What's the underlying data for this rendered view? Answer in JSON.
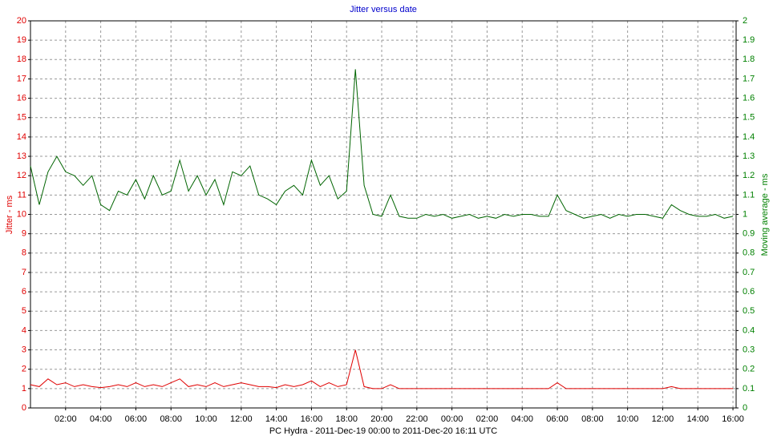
{
  "chart_data": {
    "type": "line",
    "title": "Jitter versus date",
    "xlabel": "PC Hydra  -  2011-Dec-19 00:00  to  2011-Dec-20 16:11 UTC",
    "ylabel": "Jitter - ms",
    "y2label": "Moving average - ms",
    "grid": true,
    "xlim": [
      0,
      40.18
    ],
    "xticks": [
      {
        "value": 2,
        "label": "02:00"
      },
      {
        "value": 4,
        "label": "04:00"
      },
      {
        "value": 6,
        "label": "06:00"
      },
      {
        "value": 8,
        "label": "08:00"
      },
      {
        "value": 10,
        "label": "10:00"
      },
      {
        "value": 12,
        "label": "12:00"
      },
      {
        "value": 14,
        "label": "14:00"
      },
      {
        "value": 16,
        "label": "16:00"
      },
      {
        "value": 18,
        "label": "18:00"
      },
      {
        "value": 20,
        "label": "20:00"
      },
      {
        "value": 22,
        "label": "22:00"
      },
      {
        "value": 24,
        "label": "00:00"
      },
      {
        "value": 26,
        "label": "02:00"
      },
      {
        "value": 28,
        "label": "04:00"
      },
      {
        "value": 30,
        "label": "06:00"
      },
      {
        "value": 32,
        "label": "08:00"
      },
      {
        "value": 34,
        "label": "10:00"
      },
      {
        "value": 36,
        "label": "12:00"
      },
      {
        "value": 38,
        "label": "14:00"
      },
      {
        "value": 40,
        "label": "16:00"
      }
    ],
    "ylim": [
      0,
      20
    ],
    "yticks": [
      0,
      1,
      2,
      3,
      4,
      5,
      6,
      7,
      8,
      9,
      10,
      11,
      12,
      13,
      14,
      15,
      16,
      17,
      18,
      19,
      20
    ],
    "y2lim": [
      0,
      2
    ],
    "y2ticks": [
      0,
      0.1,
      0.2,
      0.3,
      0.4,
      0.5,
      0.6,
      0.7,
      0.8,
      0.9,
      1,
      1.1,
      1.2,
      1.3,
      1.4,
      1.5,
      1.6,
      1.7,
      1.8,
      1.9,
      2
    ],
    "ycolor": "#e00000",
    "y2color": "#008000",
    "xcolor": "#000000",
    "titlecolor": "#0000cc",
    "x": [
      0,
      0.5,
      1,
      1.5,
      2,
      2.5,
      3,
      3.5,
      4,
      4.5,
      5,
      5.5,
      6,
      6.5,
      7,
      7.5,
      8,
      8.5,
      9,
      9.5,
      10,
      10.5,
      11,
      11.5,
      12,
      12.5,
      13,
      13.5,
      14,
      14.5,
      15,
      15.5,
      16,
      16.5,
      17,
      17.5,
      18,
      18.5,
      19,
      19.5,
      20,
      20.5,
      21,
      21.5,
      22,
      22.5,
      23,
      23.5,
      24,
      24.5,
      25,
      25.5,
      26,
      26.5,
      27,
      27.5,
      28,
      28.5,
      29,
      29.5,
      30,
      30.5,
      31,
      31.5,
      32,
      32.5,
      33,
      33.5,
      34,
      34.5,
      35,
      35.5,
      36,
      36.5,
      37,
      37.5,
      38,
      38.5,
      39,
      39.5,
      40
    ],
    "series": [
      {
        "color": "#e00000",
        "values": [
          1.2,
          1.1,
          1.5,
          1.2,
          1.3,
          1.1,
          1.2,
          1.1,
          1.05,
          1.1,
          1.2,
          1.1,
          1.3,
          1.1,
          1.2,
          1.1,
          1.3,
          1.5,
          1.1,
          1.2,
          1.1,
          1.3,
          1.1,
          1.2,
          1.3,
          1.2,
          1.1,
          1.1,
          1.05,
          1.2,
          1.1,
          1.2,
          1.4,
          1.1,
          1.3,
          1.1,
          1.2,
          3.0,
          1.1,
          1.0,
          1.0,
          1.2,
          1.0,
          1.0,
          1.0,
          1.0,
          1.0,
          1.0,
          1.0,
          1.0,
          1.0,
          1.0,
          1.0,
          1.0,
          1.0,
          1.0,
          1.0,
          1.0,
          1.0,
          1.0,
          1.3,
          1.0,
          1.0,
          1.0,
          1.0,
          1.0,
          1.0,
          1.0,
          1.0,
          1.0,
          1.0,
          1.0,
          1.0,
          1.1,
          1.0,
          1.0,
          1.0,
          1.0,
          1.0,
          1.0,
          1.0
        ]
      },
      {
        "color": "#006400",
        "axis": "y2",
        "values": [
          1.25,
          1.05,
          1.22,
          1.3,
          1.22,
          1.2,
          1.15,
          1.2,
          1.05,
          1.02,
          1.12,
          1.1,
          1.18,
          1.08,
          1.2,
          1.1,
          1.12,
          1.28,
          1.12,
          1.2,
          1.1,
          1.18,
          1.05,
          1.22,
          1.2,
          1.25,
          1.1,
          1.08,
          1.05,
          1.12,
          1.15,
          1.1,
          1.28,
          1.15,
          1.2,
          1.08,
          1.12,
          1.75,
          1.15,
          1.0,
          0.99,
          1.1,
          0.99,
          0.98,
          0.98,
          1.0,
          0.99,
          1.0,
          0.98,
          0.99,
          1.0,
          0.98,
          0.99,
          0.98,
          1.0,
          0.99,
          1.0,
          1.0,
          0.99,
          0.99,
          1.1,
          1.02,
          1.0,
          0.98,
          0.99,
          1.0,
          0.98,
          1.0,
          0.99,
          1.0,
          1.0,
          0.99,
          0.98,
          1.05,
          1.02,
          1.0,
          0.99,
          0.99,
          1.0,
          0.98,
          0.99
        ]
      }
    ]
  }
}
